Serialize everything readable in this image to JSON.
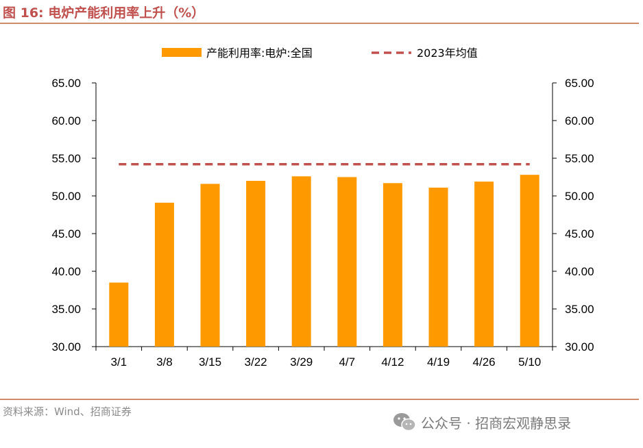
{
  "header": {
    "title": "图 16:  电炉产能利用率上升（%）"
  },
  "footer": {
    "source": "资料来源：Wind、招商证券",
    "watermark": "公众号 · 招商宏观静思录",
    "watermark_icon": "wechat-icon"
  },
  "colors": {
    "bar": "#FF9900",
    "avg_line": "#C0504D",
    "title": "#C0504D"
  },
  "chart_data": {
    "type": "bar",
    "categories": [
      "3/1",
      "3/8",
      "3/15",
      "3/22",
      "3/29",
      "4/7",
      "4/12",
      "4/19",
      "4/26",
      "5/10"
    ],
    "series": [
      {
        "name": "产能利用率:电炉:全国",
        "type": "bar",
        "values": [
          38.5,
          49.1,
          51.6,
          52.0,
          52.6,
          52.5,
          51.7,
          51.1,
          51.9,
          52.8
        ]
      },
      {
        "name": "2023年均值",
        "type": "line",
        "style": "dashed",
        "values": [
          54.2,
          54.2,
          54.2,
          54.2,
          54.2,
          54.2,
          54.2,
          54.2,
          54.2,
          54.2
        ]
      }
    ],
    "ylim": [
      30,
      65
    ],
    "yticks": [
      "30.00",
      "35.00",
      "40.00",
      "45.00",
      "50.00",
      "55.00",
      "60.00",
      "65.00"
    ],
    "secondary_yticks": [
      "30.00",
      "35.00",
      "40.00",
      "45.00",
      "50.00",
      "55.00",
      "60.00",
      "65.00"
    ],
    "grid": false,
    "legend_position": "top"
  }
}
